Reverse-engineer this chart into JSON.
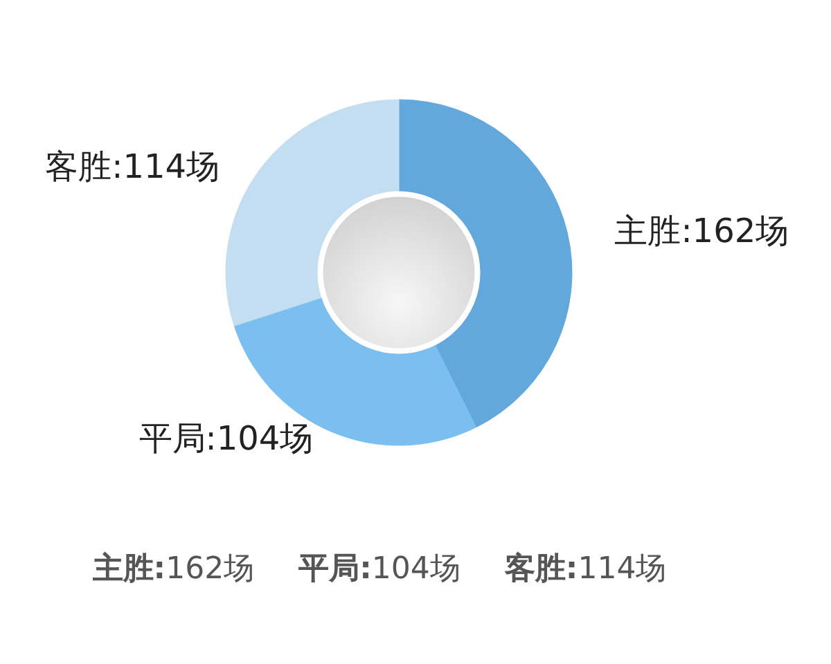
{
  "chart_data": {
    "type": "donut",
    "categories": [
      "主胜",
      "平局",
      "客胜"
    ],
    "values": [
      162,
      104,
      114
    ],
    "colors": [
      "#62a8dc",
      "#7bbff0",
      "#c3ddf1"
    ],
    "value_labels": [
      ":162场",
      ":104场",
      ":114场"
    ],
    "annotations": [
      "主胜:162场",
      "平局:104场",
      "客胜:114场"
    ]
  }
}
